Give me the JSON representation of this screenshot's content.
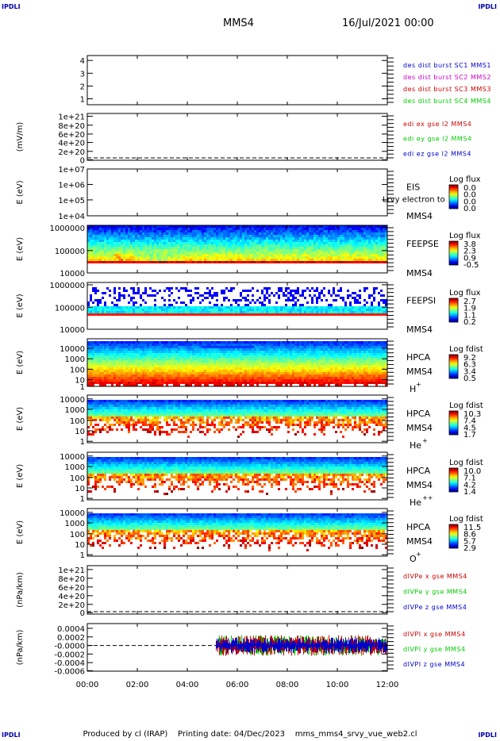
{
  "corner_label": "IPDLI",
  "header": {
    "spacecraft": "MMS4",
    "datetime": "16/Jul/2021 00:00"
  },
  "footer": {
    "produced_by": "Produced by cl (IRAP)",
    "printing_date": "Printing date: 04/Dec/2023",
    "file": "mms_mms4_srvy_vue_web2.cl"
  },
  "colors": {
    "red": "#cc0000",
    "green": "#00cc00",
    "blue": "#0000cc",
    "magenta": "#cc00cc"
  },
  "chart_data": [
    {
      "type": "line",
      "id": "dist",
      "yticks": [
        "4",
        "3",
        "2",
        "1"
      ],
      "legend": [
        {
          "text": "des dist burst SC1 MMS1",
          "color": "#0000cc"
        },
        {
          "text": "des dist burst SC2 MMS2",
          "color": "#cc00cc"
        },
        {
          "text": "des dist burst SC3 MMS3",
          "color": "#cc0000"
        },
        {
          "text": "des dist burst SC4 MMS4",
          "color": "#00cc00"
        }
      ]
    },
    {
      "type": "line",
      "id": "edi",
      "ylabel": "(mV/m)",
      "yticks": [
        "1e+21",
        "8e+20",
        "6e+20",
        "4e+20",
        "2e+20",
        "0"
      ],
      "legend": [
        {
          "text": "edi ex gse l2 MMS4",
          "color": "#cc0000"
        },
        {
          "text": "edi ey gse l2 MMS4",
          "color": "#00cc00"
        },
        {
          "text": "edi ez gse l2 MMS4",
          "color": "#0000cc"
        }
      ]
    },
    {
      "type": "heatmap",
      "id": "eis",
      "ylabel": "E (eV)",
      "log_y": true,
      "yticks": [
        "1e+07",
        "1e+06",
        "1e+05",
        "1e+04"
      ],
      "instrument": "EIS",
      "sc": "MMS4",
      "extra_label": "Lrvy electron to",
      "colorbar_title": "Log flux",
      "colorbar_ticks": [
        "0.0",
        "0.0",
        "0.0",
        "0.0"
      ]
    },
    {
      "type": "heatmap",
      "id": "feepse",
      "ylabel": "E (eV)",
      "log_y": true,
      "yticks": [
        "1000000",
        "100000",
        "10000"
      ],
      "instrument": "FEEPSE",
      "sc": "MMS4",
      "colorbar_title": "Log flux",
      "colorbar_ticks": [
        "3.8",
        "2.3",
        "0.9",
        "-0.5"
      ]
    },
    {
      "type": "heatmap",
      "id": "feepsi",
      "ylabel": "E (eV)",
      "log_y": true,
      "yticks": [
        "1000000",
        "100000",
        "10000"
      ],
      "instrument": "FEEPSI",
      "sc": "MMS4",
      "colorbar_title": "Log flux",
      "colorbar_ticks": [
        "2.7",
        "1.9",
        "1.1",
        "0.2"
      ]
    },
    {
      "type": "heatmap",
      "id": "hpca_h",
      "ylabel": "E (eV)",
      "log_y": true,
      "yticks": [
        "10000",
        "1000",
        "100",
        "10",
        "1"
      ],
      "instrument": "HPCA",
      "sc": "MMS4",
      "species": "H",
      "species_sup": "+",
      "colorbar_title": "Log fdist",
      "colorbar_ticks": [
        "9.2",
        "6.3",
        "3.4",
        "0.5"
      ]
    },
    {
      "type": "heatmap",
      "id": "hpca_he",
      "ylabel": "E (eV)",
      "log_y": true,
      "yticks": [
        "10000",
        "1000",
        "100",
        "10",
        "1"
      ],
      "instrument": "HPCA",
      "sc": "MMS4",
      "species": "He",
      "species_sup": "+",
      "colorbar_title": "Log fdist",
      "colorbar_ticks": [
        "10.3",
        "7.4",
        "4.5",
        "1.7"
      ]
    },
    {
      "type": "heatmap",
      "id": "hpca_hepp",
      "ylabel": "E (eV)",
      "log_y": true,
      "yticks": [
        "10000",
        "1000",
        "100",
        "10",
        "1"
      ],
      "instrument": "HPCA",
      "sc": "MMS4",
      "species": "He",
      "species_sup": "++",
      "colorbar_title": "Log fdist",
      "colorbar_ticks": [
        "10.0",
        "7.1",
        "4.2",
        "1.4"
      ]
    },
    {
      "type": "heatmap",
      "id": "hpca_o",
      "ylabel": "E (eV)",
      "log_y": true,
      "yticks": [
        "10000",
        "1000",
        "100",
        "10",
        "1"
      ],
      "instrument": "HPCA",
      "sc": "MMS4",
      "species": "O",
      "species_sup": "+",
      "colorbar_title": "Log fdist",
      "colorbar_ticks": [
        "11.5",
        "8.6",
        "5.7",
        "2.9"
      ]
    },
    {
      "type": "line",
      "id": "divpe",
      "ylabel": "(nPa/km)",
      "yticks": [
        "1e+21",
        "8e+20",
        "6e+20",
        "4e+20",
        "2e+20",
        "0"
      ],
      "legend": [
        {
          "text": "dIVPe x gse MMS4",
          "color": "#cc0000"
        },
        {
          "text": "dIVPe y gse MMS4",
          "color": "#00cc00"
        },
        {
          "text": "dIVPe z gse MMS4",
          "color": "#0000cc"
        }
      ]
    },
    {
      "type": "line",
      "id": "divpi",
      "ylabel": "(nPa/km)",
      "yticks": [
        "0.0004",
        "0.0002",
        "-0.0000",
        "-0.0002",
        "-0.0004",
        "-0.0006"
      ],
      "legend": [
        {
          "text": "dIVPI x gse MMS4",
          "color": "#cc0000"
        },
        {
          "text": "dIVPI y gse MMS4",
          "color": "#00cc00"
        },
        {
          "text": "dIVPI z gse MMS4",
          "color": "#0000cc"
        }
      ]
    }
  ],
  "x_axis": {
    "ticks": [
      "00:00",
      "02:00",
      "04:00",
      "06:00",
      "08:00",
      "10:00",
      "12:00"
    ]
  }
}
